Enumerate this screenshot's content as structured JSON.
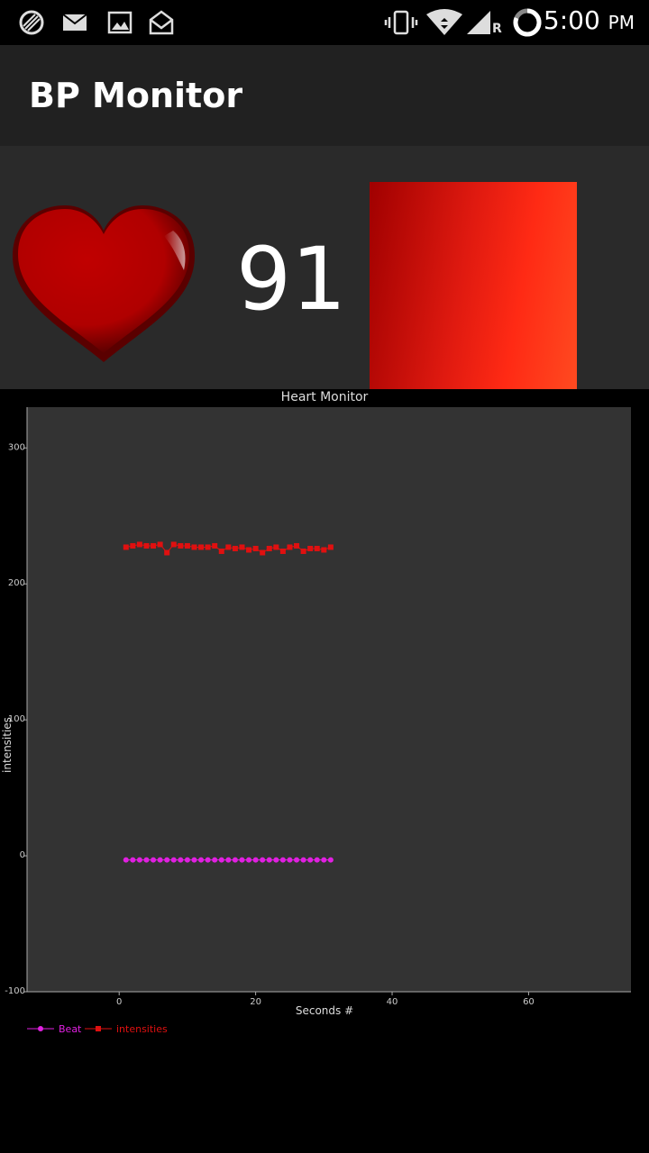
{
  "status_bar": {
    "time": "5:00",
    "ampm": "PM",
    "left_icons": [
      "clock-app-icon",
      "mail-icon",
      "image-icon",
      "envelope-open-icon"
    ],
    "right_icons": [
      "vibrate-icon",
      "wifi-icon",
      "signal-icon",
      "roaming-r",
      "battery-icon"
    ],
    "roaming_label": "R"
  },
  "app": {
    "title": "BP Monitor"
  },
  "monitor": {
    "heart_rate": "91",
    "heart_icon": "heart-icon",
    "color_swatch": {
      "colors": [
        "#a00000",
        "#e01a10",
        "#ff2a14",
        "#ff4a20"
      ]
    }
  },
  "chart_data": {
    "type": "line",
    "title": "Heart Monitor",
    "xlabel": "Seconds #",
    "ylabel": "intensities",
    "xlim": [
      -13.5,
      75
    ],
    "ylim": [
      -100,
      330
    ],
    "x_ticks": [
      "0",
      "20",
      "40",
      "60"
    ],
    "x_tick_values": [
      0,
      20,
      40,
      60
    ],
    "y_ticks": [
      "-100",
      "0",
      "100",
      "200",
      "300"
    ],
    "y_tick_values": [
      -100,
      0,
      100,
      200,
      300
    ],
    "grid": false,
    "legend_position": "bottom-left",
    "series": [
      {
        "name": "Beat",
        "color": "#e020e0",
        "marker": "circle",
        "x": [
          1,
          2,
          3,
          4,
          5,
          6,
          7,
          8,
          9,
          10,
          11,
          12,
          13,
          14,
          15,
          16,
          17,
          18,
          19,
          20,
          21,
          22,
          23,
          24,
          25,
          26,
          27,
          28,
          29,
          30,
          31
        ],
        "y": [
          -3,
          -3,
          -3,
          -3,
          -3,
          -3,
          -3,
          -3,
          -3,
          -3,
          -3,
          -3,
          -3,
          -3,
          -3,
          -3,
          -3,
          -3,
          -3,
          -3,
          -3,
          -3,
          -3,
          -3,
          -3,
          -3,
          -3,
          -3,
          -3,
          -3,
          -3
        ]
      },
      {
        "name": "intensities",
        "color": "#e01010",
        "marker": "square",
        "x": [
          1,
          2,
          3,
          4,
          5,
          6,
          7,
          8,
          9,
          10,
          11,
          12,
          13,
          14,
          15,
          16,
          17,
          18,
          19,
          20,
          21,
          22,
          23,
          24,
          25,
          26,
          27,
          28,
          29,
          30,
          31
        ],
        "y": [
          227,
          228,
          229,
          228,
          228,
          229,
          223,
          229,
          228,
          228,
          227,
          227,
          227,
          228,
          224,
          227,
          226,
          227,
          225,
          226,
          223,
          226,
          227,
          224,
          227,
          228,
          224,
          226,
          226,
          225,
          227
        ]
      }
    ]
  }
}
